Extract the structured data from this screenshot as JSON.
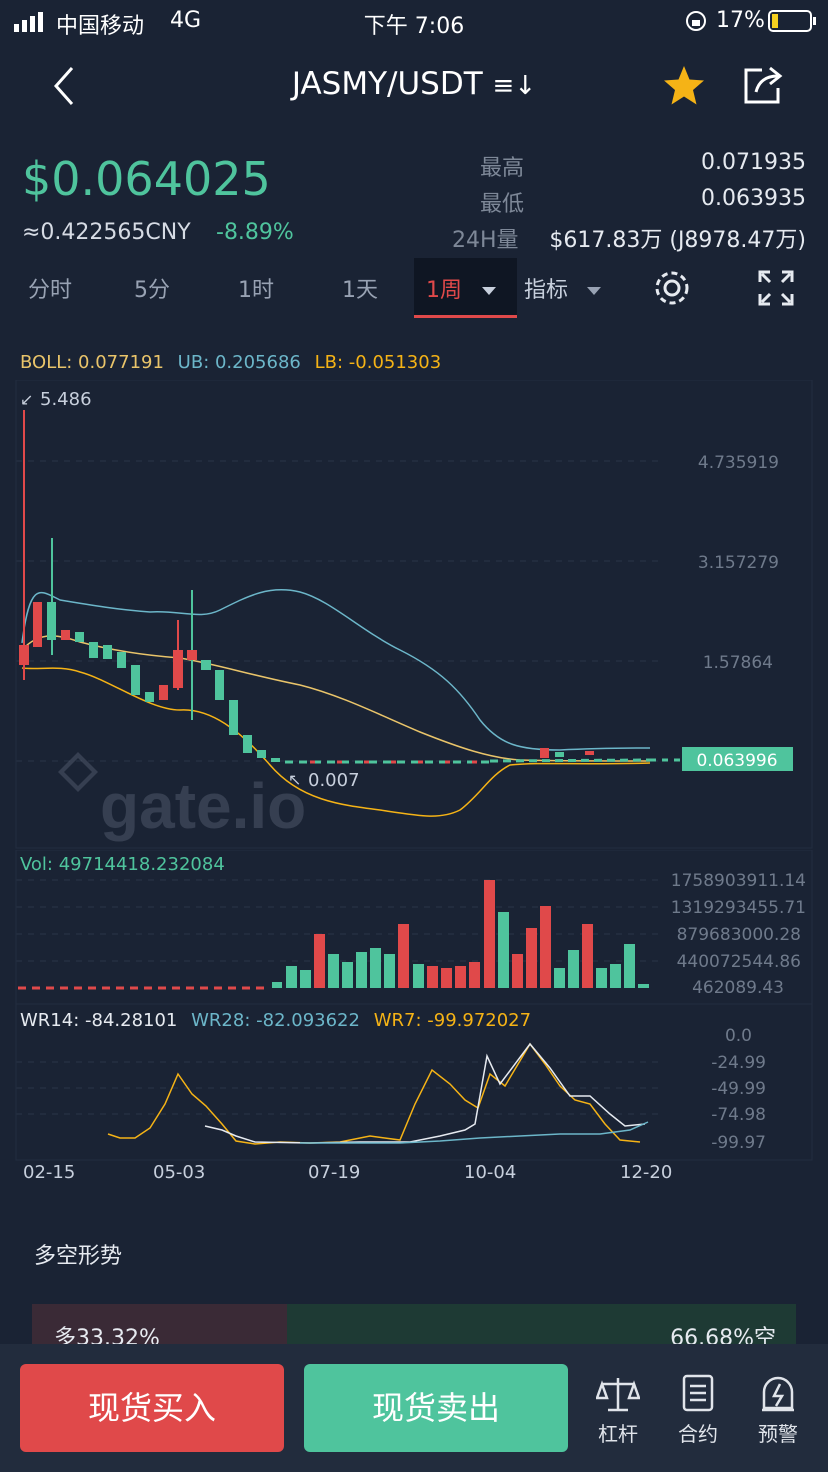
{
  "status": {
    "carrier": "中国移动",
    "network": "4G",
    "time": "下午 7:06",
    "battery": "17%"
  },
  "header": {
    "pair": "JASMY/USDT",
    "swap_icon": "≡↓"
  },
  "ticker": {
    "price": "$0.064025",
    "cny": "≈0.422565CNY",
    "change": "-8.89%",
    "high_label": "最高",
    "high": "0.071935",
    "low_label": "最低",
    "low": "0.063935",
    "vol_label": "24H量",
    "vol": "$617.83万 (J8978.47万)"
  },
  "tabs": [
    {
      "label": "分时"
    },
    {
      "label": "5分"
    },
    {
      "label": "1时"
    },
    {
      "label": "1天"
    },
    {
      "label": "1周"
    },
    {
      "label": "指标"
    }
  ],
  "boll": {
    "boll": "BOLL: 0.077191",
    "ub": "UB: 0.205686",
    "lb": "LB: -0.051303"
  },
  "main_chart": {
    "high_marker": "5.486",
    "low_marker": "0.007",
    "last_price": "0.063996",
    "y_ticks": [
      "4.735919",
      "3.157279",
      "1.57864"
    ],
    "watermark": "gate.io"
  },
  "volume": {
    "label": "Vol: 49714418.232084",
    "y_ticks": [
      "1758903911.14",
      "1319293455.71",
      "879683000.28",
      "440072544.86",
      "462089.43"
    ]
  },
  "wr": {
    "wr14": "WR14: -84.28101",
    "wr28": "WR28: -82.093622",
    "wr7": "WR7: -99.972027",
    "y_ticks": [
      "0.0",
      "-24.99",
      "-49.99",
      "-74.98",
      "-99.97"
    ]
  },
  "x_ticks": [
    "02-15",
    "05-03",
    "07-19",
    "10-04",
    "12-20"
  ],
  "sentiment": {
    "title": "多空形势",
    "long": "多33.32%",
    "short": "66.68%空",
    "long_ratio": 0.3332
  },
  "bottom": {
    "buy": "现货买入",
    "sell": "现货卖出",
    "leverage": "杠杆",
    "contract": "合约",
    "alert": "预警"
  },
  "colors": {
    "bg": "#1a2334",
    "up": "#4fc49d",
    "down": "#e0494a",
    "accent": "#f5b316",
    "boll_mid": "#e9c46a",
    "boll_band": "#6cb6c9"
  }
}
